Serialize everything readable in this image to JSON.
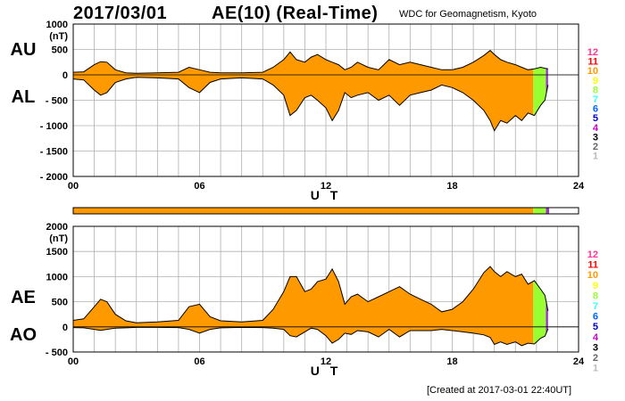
{
  "header": {
    "date": "2017/03/01",
    "title": "AE(10) (Real-Time)",
    "institution": "WDC for Geomagnetism, Kyoto"
  },
  "footer": {
    "created": "[Created at 2017-03-01 22:40UT]"
  },
  "colors": {
    "fill_primary": "#ff9900",
    "fill_late": "#99ff33",
    "fill_last": "#9933cc",
    "grid": "#b0b0b0",
    "line": "#000000"
  },
  "station_legend": [
    {
      "label": "12",
      "color": "#ff3399"
    },
    {
      "label": "11",
      "color": "#ff0000"
    },
    {
      "label": "10",
      "color": "#ff9900"
    },
    {
      "label": "9",
      "color": "#ffff00"
    },
    {
      "label": "8",
      "color": "#99ff33"
    },
    {
      "label": "7",
      "color": "#33ffff"
    },
    {
      "label": "6",
      "color": "#0066ff"
    },
    {
      "label": "5",
      "color": "#0000cc"
    },
    {
      "label": "4",
      "color": "#cc00cc"
    },
    {
      "label": "3",
      "color": "#000000"
    },
    {
      "label": "2",
      "color": "#666666"
    },
    {
      "label": "1",
      "color": "#bbbbbb"
    }
  ],
  "status_bar": {
    "segments": [
      {
        "x_start": 0,
        "x_end": 21.85,
        "color": "#ff9900"
      },
      {
        "x_start": 21.85,
        "x_end": 22.45,
        "color": "#99ff33"
      },
      {
        "x_start": 22.45,
        "x_end": 22.6,
        "color": "#9933cc"
      }
    ]
  },
  "chart_data": [
    {
      "type": "area",
      "xlabel": "U T",
      "ylabel": "(nT)",
      "side_labels": [
        "AU",
        "AL"
      ],
      "x_ticks": [
        "00",
        "06",
        "12",
        "18",
        "24"
      ],
      "y_ticks": [
        "1000",
        "500",
        "0",
        "- 500",
        "- 1000",
        "- 1500",
        "- 2000"
      ],
      "xlim": [
        0,
        24
      ],
      "ylim": [
        -2000,
        1000
      ],
      "grid": true,
      "series": [
        {
          "x": [
            0,
            0.5,
            1.0,
            1.3,
            1.6,
            2.0,
            2.5,
            3.0,
            4.0,
            5.0,
            5.5,
            6.0,
            6.5,
            7.0,
            8.0,
            9.0,
            9.5,
            10.0,
            10.3,
            10.6,
            11.0,
            11.3,
            11.6,
            12.0,
            12.3,
            12.6,
            12.9,
            13.2,
            13.5,
            14.0,
            14.5,
            15.0,
            15.5,
            16.0,
            16.5,
            17.0,
            17.5,
            18.0,
            18.5,
            19.0,
            19.5,
            19.8,
            20.0,
            20.3,
            20.6,
            21.0,
            21.3,
            21.6,
            21.9,
            22.2,
            22.4,
            22.55
          ],
          "y": [
            50,
            60,
            200,
            260,
            250,
            100,
            40,
            30,
            40,
            50,
            150,
            100,
            50,
            40,
            40,
            50,
            150,
            300,
            450,
            300,
            250,
            350,
            400,
            300,
            250,
            200,
            100,
            150,
            250,
            150,
            100,
            300,
            200,
            250,
            200,
            150,
            100,
            100,
            150,
            250,
            380,
            480,
            400,
            300,
            250,
            200,
            150,
            100,
            120,
            150,
            130,
            120
          ]
        },
        {
          "x": [
            0,
            0.5,
            1.0,
            1.3,
            1.6,
            2.0,
            2.5,
            3.0,
            4.0,
            5.0,
            5.5,
            6.0,
            6.5,
            7.0,
            8.0,
            9.0,
            9.5,
            10.0,
            10.3,
            10.6,
            11.0,
            11.3,
            11.6,
            12.0,
            12.3,
            12.6,
            12.9,
            13.2,
            13.5,
            14.0,
            14.5,
            15.0,
            15.5,
            16.0,
            16.5,
            17.0,
            17.5,
            18.0,
            18.5,
            19.0,
            19.5,
            19.8,
            20.0,
            20.3,
            20.6,
            21.0,
            21.3,
            21.6,
            21.9,
            22.2,
            22.4,
            22.55
          ],
          "y": [
            -80,
            -100,
            -300,
            -400,
            -350,
            -150,
            -80,
            -50,
            -60,
            -80,
            -250,
            -350,
            -150,
            -80,
            -60,
            -80,
            -200,
            -400,
            -800,
            -700,
            -450,
            -400,
            -500,
            -650,
            -900,
            -700,
            -350,
            -450,
            -400,
            -350,
            -500,
            -400,
            -600,
            -400,
            -350,
            -300,
            -200,
            -250,
            -350,
            -500,
            -700,
            -900,
            -1100,
            -900,
            -950,
            -800,
            -900,
            -750,
            -800,
            -600,
            -500,
            -200
          ]
        }
      ]
    },
    {
      "type": "area",
      "xlabel": "U T",
      "ylabel": "(nT)",
      "side_labels": [
        "AE",
        "AO"
      ],
      "x_ticks": [
        "00",
        "06",
        "12",
        "18",
        "24"
      ],
      "y_ticks": [
        "2000",
        "1500",
        "1000",
        "500",
        "0",
        "- 500"
      ],
      "xlim": [
        0,
        24
      ],
      "ylim": [
        -500,
        2000
      ],
      "grid": true,
      "series": [
        {
          "x": [
            0,
            0.5,
            1.0,
            1.3,
            1.6,
            2.0,
            2.5,
            3.0,
            4.0,
            5.0,
            5.5,
            6.0,
            6.5,
            7.0,
            8.0,
            9.0,
            9.5,
            10.0,
            10.3,
            10.6,
            11.0,
            11.3,
            11.6,
            12.0,
            12.3,
            12.6,
            12.9,
            13.2,
            13.5,
            14.0,
            14.5,
            15.0,
            15.5,
            16.0,
            16.5,
            17.0,
            17.5,
            18.0,
            18.5,
            19.0,
            19.5,
            19.8,
            20.0,
            20.3,
            20.6,
            21.0,
            21.3,
            21.6,
            21.9,
            22.2,
            22.4,
            22.55
          ],
          "y": [
            130,
            160,
            400,
            550,
            500,
            250,
            120,
            80,
            100,
            130,
            400,
            450,
            200,
            120,
            100,
            130,
            350,
            700,
            1000,
            1000,
            700,
            750,
            900,
            950,
            1150,
            900,
            450,
            600,
            650,
            500,
            600,
            700,
            800,
            650,
            550,
            450,
            300,
            350,
            500,
            750,
            1080,
            1200,
            1100,
            1000,
            1100,
            1000,
            1050,
            850,
            920,
            750,
            630,
            320
          ]
        },
        {
          "x": [
            0,
            0.5,
            1.0,
            1.3,
            1.6,
            2.0,
            2.5,
            3.0,
            4.0,
            5.0,
            5.5,
            6.0,
            6.5,
            7.0,
            8.0,
            9.0,
            9.5,
            10.0,
            10.3,
            10.6,
            11.0,
            11.3,
            11.6,
            12.0,
            12.3,
            12.6,
            12.9,
            13.2,
            13.5,
            14.0,
            14.5,
            15.0,
            15.5,
            16.0,
            16.5,
            17.0,
            17.5,
            18.0,
            18.5,
            19.0,
            19.5,
            19.8,
            20.0,
            20.3,
            20.6,
            21.0,
            21.3,
            21.6,
            21.9,
            22.2,
            22.4,
            22.55
          ],
          "y": [
            -15,
            -20,
            -50,
            -70,
            -50,
            -25,
            -20,
            -10,
            -10,
            -15,
            -50,
            -125,
            -50,
            -20,
            -10,
            -15,
            -25,
            -50,
            -175,
            -200,
            -100,
            -25,
            -50,
            -175,
            -325,
            -250,
            -125,
            -150,
            -75,
            -100,
            -200,
            -50,
            -200,
            -75,
            -75,
            -75,
            -50,
            -75,
            -100,
            -125,
            -160,
            -210,
            -350,
            -300,
            -350,
            -300,
            -375,
            -325,
            -340,
            -225,
            -185,
            -40
          ]
        }
      ]
    }
  ]
}
